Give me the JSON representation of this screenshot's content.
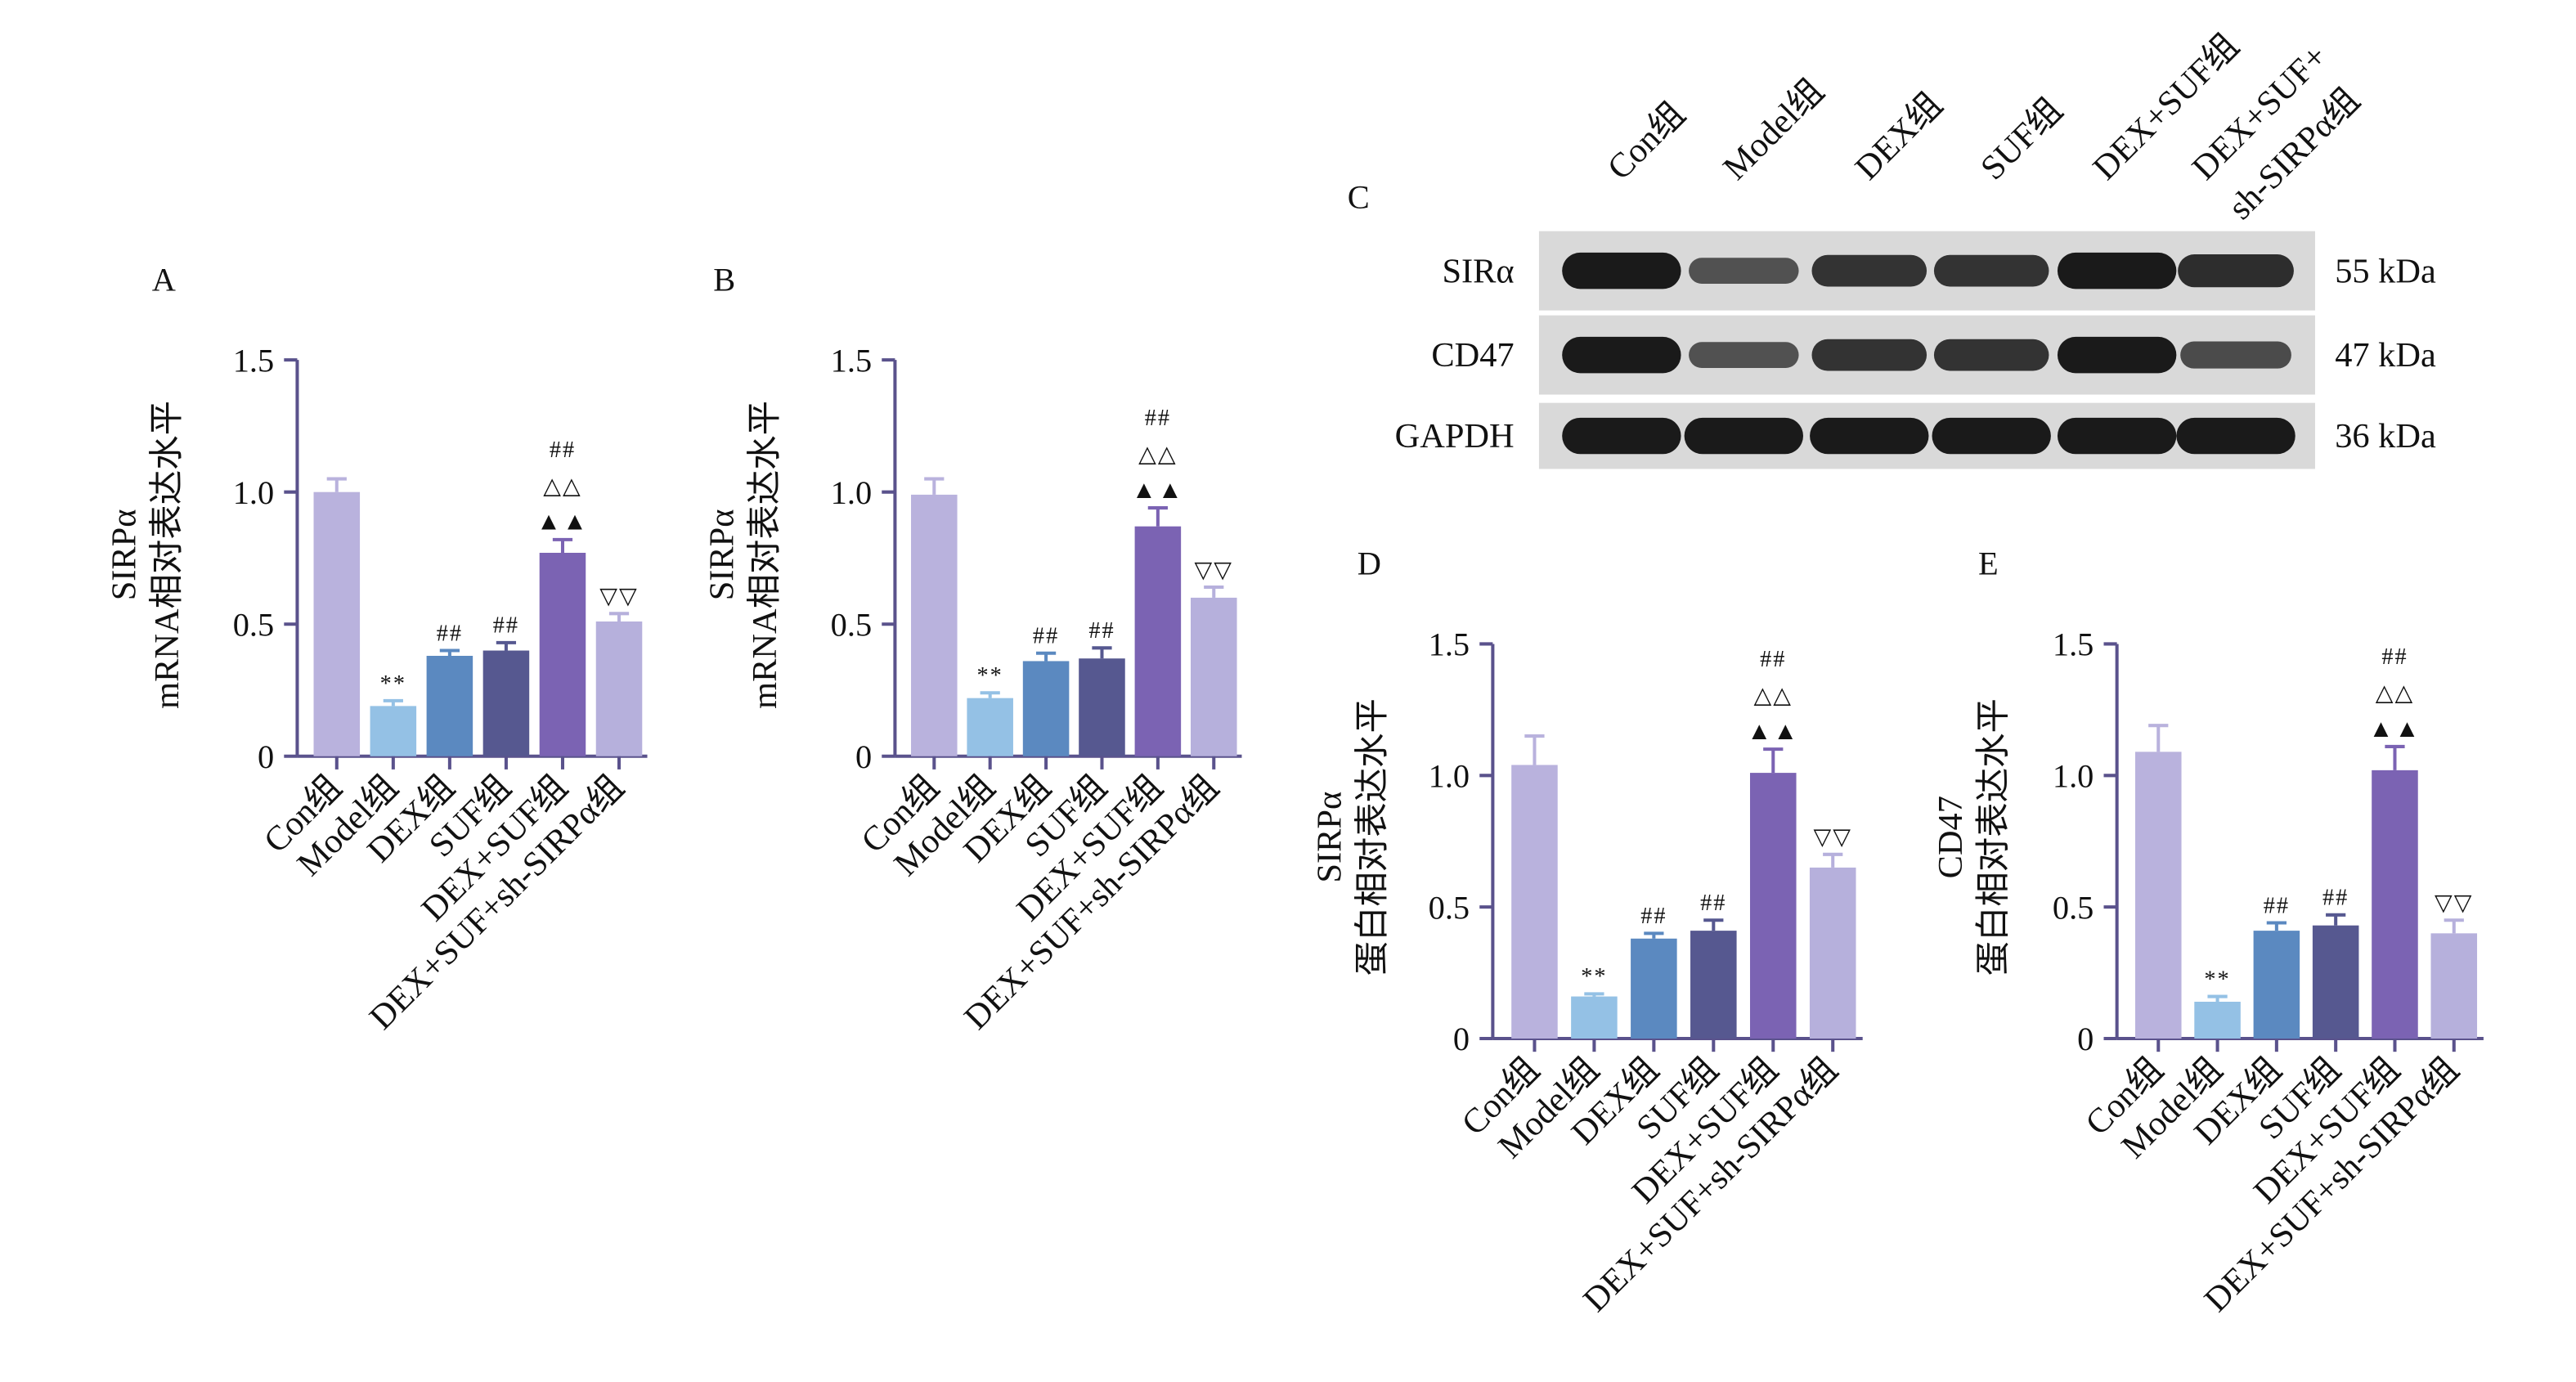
{
  "colors": {
    "axis": "#5a528c",
    "con": "#b9b2dd",
    "model": "#94c1e5",
    "dex": "#5b89c0",
    "suf": "#565890",
    "dexsuf": "#7b63b3",
    "sh": "#b6b0dc",
    "blot_bg": "#d9d9d9",
    "band": "#1a1a1a"
  },
  "groups": [
    "Con组",
    "Model组",
    "DEX组",
    "SUF组",
    "DEX+SUF组",
    "DEX+SUF+sh-SIRPα组"
  ],
  "chart_data": [
    {
      "panel": "A",
      "type": "bar",
      "ylabel_line1": "SIRPα",
      "ylabel_line2": "mRNA相对表达水平",
      "ylim": [
        0,
        1.5
      ],
      "yticks": [
        "0",
        "0.5",
        "1.0",
        "1.5"
      ],
      "categories": [
        "Con组",
        "Model组",
        "DEX组",
        "SUF组",
        "DEX+SUF组",
        "DEX+SUF+sh-SIRPα组"
      ],
      "values": [
        1.0,
        0.19,
        0.38,
        0.4,
        0.77,
        0.51
      ],
      "errors": [
        0.05,
        0.02,
        0.02,
        0.03,
        0.05,
        0.03
      ],
      "annotations": [
        [],
        [
          "**"
        ],
        [
          "##"
        ],
        [
          "##"
        ],
        [
          "▲▲",
          "△△",
          "##"
        ],
        [
          "▽▽"
        ]
      ]
    },
    {
      "panel": "B",
      "type": "bar",
      "ylabel_line1": "SIRPα",
      "ylabel_line2": "mRNA相对表达水平",
      "ylim": [
        0,
        1.5
      ],
      "yticks": [
        "0",
        "0.5",
        "1.0",
        "1.5"
      ],
      "categories": [
        "Con组",
        "Model组",
        "DEX组",
        "SUF组",
        "DEX+SUF组",
        "DEX+SUF+sh-SIRPα组"
      ],
      "values": [
        0.99,
        0.22,
        0.36,
        0.37,
        0.87,
        0.6
      ],
      "errors": [
        0.06,
        0.02,
        0.03,
        0.04,
        0.07,
        0.04
      ],
      "annotations": [
        [],
        [
          "**"
        ],
        [
          "##"
        ],
        [
          "##"
        ],
        [
          "▲▲",
          "△△",
          "##"
        ],
        [
          "▽▽"
        ]
      ]
    },
    {
      "panel": "D",
      "type": "bar",
      "ylabel_line1": "SIRPα",
      "ylabel_line2": "蛋白相对表达水平",
      "ylim": [
        0,
        1.5
      ],
      "yticks": [
        "0",
        "0.5",
        "1.0",
        "1.5"
      ],
      "categories": [
        "Con组",
        "Model组",
        "DEX组",
        "SUF组",
        "DEX+SUF组",
        "DEX+SUF+sh-SIRPα组"
      ],
      "values": [
        1.04,
        0.16,
        0.38,
        0.41,
        1.01,
        0.65
      ],
      "errors": [
        0.11,
        0.01,
        0.02,
        0.04,
        0.09,
        0.05
      ],
      "annotations": [
        [],
        [
          "**"
        ],
        [
          "##"
        ],
        [
          "##"
        ],
        [
          "▲▲",
          "△△",
          "##"
        ],
        [
          "▽▽"
        ]
      ]
    },
    {
      "panel": "E",
      "type": "bar",
      "ylabel_line1": "CD47",
      "ylabel_line2": "蛋白相对表达水平",
      "ylim": [
        0,
        1.5
      ],
      "yticks": [
        "0",
        "0.5",
        "1.0",
        "1.5"
      ],
      "categories": [
        "Con组",
        "Model组",
        "DEX组",
        "SUF组",
        "DEX+SUF组",
        "DEX+SUF+sh-SIRPα组"
      ],
      "values": [
        1.09,
        0.14,
        0.41,
        0.43,
        1.02,
        0.4
      ],
      "errors": [
        0.1,
        0.02,
        0.03,
        0.04,
        0.09,
        0.05
      ],
      "annotations": [
        [],
        [
          "**"
        ],
        [
          "##"
        ],
        [
          "##"
        ],
        [
          "▲▲",
          "△△",
          "##"
        ],
        [
          "▽▽"
        ]
      ]
    }
  ],
  "blot": {
    "panel": "C",
    "lanes": [
      "Con组",
      "Model组",
      "DEX组",
      "SUF组",
      "DEX+SUF组",
      "DEX+SUF+",
      "sh-SIRPα组"
    ],
    "rows": [
      {
        "protein": "SIRα",
        "mw": "55 kDa",
        "intensities": [
          1.0,
          0.55,
          0.8,
          0.8,
          1.0,
          0.85
        ]
      },
      {
        "protein": "CD47",
        "mw": "47 kDa",
        "intensities": [
          1.0,
          0.55,
          0.8,
          0.8,
          1.0,
          0.6
        ]
      },
      {
        "protein": "GAPDH",
        "mw": "36 kDa",
        "intensities": [
          1.0,
          1.0,
          1.0,
          1.0,
          1.0,
          1.0
        ]
      }
    ]
  }
}
